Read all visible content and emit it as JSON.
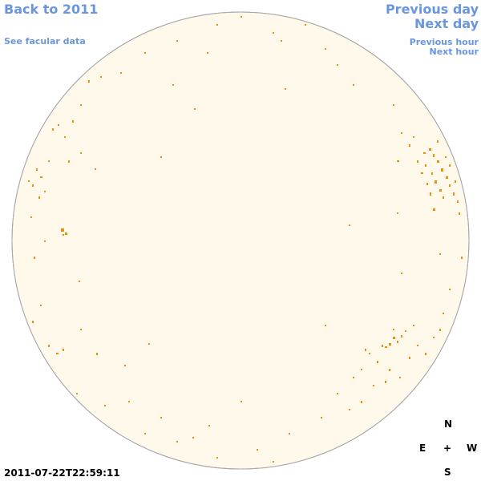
{
  "navigation": {
    "back": "Back to 2011",
    "facular": "See facular data",
    "previous_day": "Previous day",
    "next_day": "Next day",
    "previous_hour": "Previous hour",
    "next_hour": "Next hour"
  },
  "timestamp": "2011-07-22T22:59:11",
  "compass": {
    "north": "N",
    "east": "E",
    "center": "+",
    "west": "W",
    "south": "S"
  }
}
